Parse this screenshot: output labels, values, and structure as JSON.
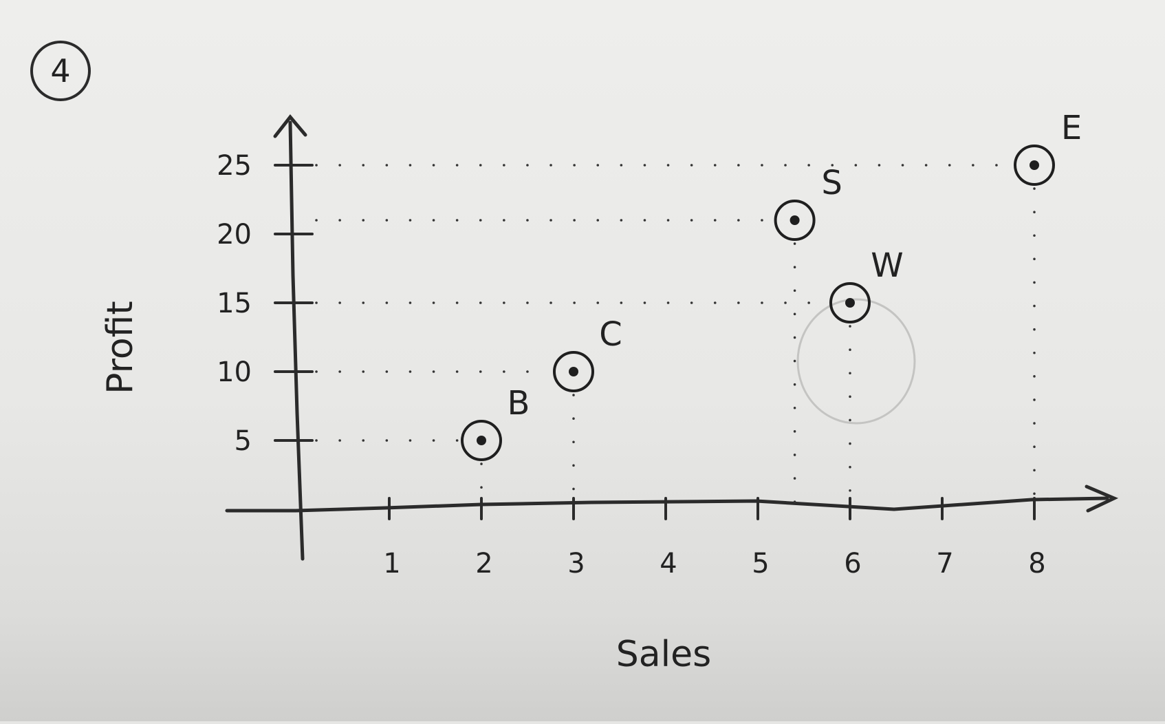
{
  "problem_number": "4",
  "chart_data": {
    "type": "scatter",
    "title": "",
    "xlabel": "Sales",
    "ylabel": "Profit",
    "xlim": [
      0,
      8.6
    ],
    "ylim": [
      0,
      28
    ],
    "x_ticks": [
      1,
      2,
      3,
      4,
      5,
      6,
      7,
      8
    ],
    "y_ticks": [
      5,
      10,
      15,
      20,
      25
    ],
    "guides": true,
    "points": [
      {
        "label": "B",
        "x": 2,
        "y": 5
      },
      {
        "label": "C",
        "x": 3,
        "y": 10
      },
      {
        "label": "W",
        "x": 6,
        "y": 15
      },
      {
        "label": "S",
        "x": 5.4,
        "y": 21
      },
      {
        "label": "E",
        "x": 8,
        "y": 25
      }
    ]
  }
}
